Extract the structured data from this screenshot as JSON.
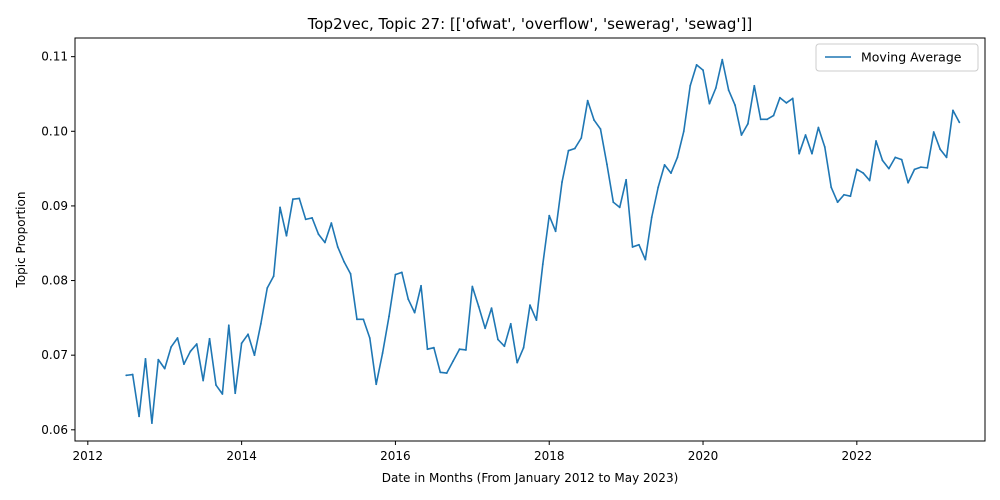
{
  "chart_data": {
    "type": "line",
    "title": "Top2vec, Topic 27: [['ofwat', 'overflow', 'sewerag', 'sewag']]",
    "xlabel": "Date in Months (From January 2012 to May 2023)",
    "ylabel": "Topic Proportion",
    "xlim": [
      "2011-11-01",
      "2023-09-01"
    ],
    "ylim": [
      0.0585,
      0.1125
    ],
    "x_ticks": [
      "2012",
      "2014",
      "2016",
      "2018",
      "2020",
      "2022"
    ],
    "y_ticks": [
      "0.06",
      "0.07",
      "0.08",
      "0.09",
      "0.10",
      "0.11"
    ],
    "grid": false,
    "legend_position": "top-right",
    "line_color": "#1f77b4",
    "series": [
      {
        "name": "Moving Average",
        "x": [
          "2012-07",
          "2012-08",
          "2012-09",
          "2012-10",
          "2012-11",
          "2012-12",
          "2013-01",
          "2013-02",
          "2013-03",
          "2013-04",
          "2013-05",
          "2013-06",
          "2013-07",
          "2013-08",
          "2013-09",
          "2013-10",
          "2013-11",
          "2013-12",
          "2014-01",
          "2014-02",
          "2014-03",
          "2014-04",
          "2014-05",
          "2014-06",
          "2014-07",
          "2014-08",
          "2014-09",
          "2014-10",
          "2014-11",
          "2014-12",
          "2015-01",
          "2015-02",
          "2015-03",
          "2015-04",
          "2015-05",
          "2015-06",
          "2015-07",
          "2015-08",
          "2015-09",
          "2015-10",
          "2015-11",
          "2015-12",
          "2016-01",
          "2016-02",
          "2016-03",
          "2016-04",
          "2016-05",
          "2016-06",
          "2016-07",
          "2016-08",
          "2016-09",
          "2016-10",
          "2016-11",
          "2016-12",
          "2017-01",
          "2017-02",
          "2017-03",
          "2017-04",
          "2017-05",
          "2017-06",
          "2017-07",
          "2017-08",
          "2017-09",
          "2017-10",
          "2017-11",
          "2017-12",
          "2018-01",
          "2018-02",
          "2018-03",
          "2018-04",
          "2018-05",
          "2018-06",
          "2018-07",
          "2018-08",
          "2018-09",
          "2018-10",
          "2018-11",
          "2018-12",
          "2019-01",
          "2019-02",
          "2019-03",
          "2019-04",
          "2019-05",
          "2019-06",
          "2019-07",
          "2019-08",
          "2019-09",
          "2019-10",
          "2019-11",
          "2019-12",
          "2020-01",
          "2020-02",
          "2020-03",
          "2020-04",
          "2020-05",
          "2020-06",
          "2020-07",
          "2020-08",
          "2020-09",
          "2020-10",
          "2020-11",
          "2020-12",
          "2021-01",
          "2021-02",
          "2021-03",
          "2021-04",
          "2021-05",
          "2021-06",
          "2021-07",
          "2021-08",
          "2021-09",
          "2021-10",
          "2021-11",
          "2021-12",
          "2022-01",
          "2022-02",
          "2022-03",
          "2022-04",
          "2022-05",
          "2022-06",
          "2022-07",
          "2022-08",
          "2022-09",
          "2022-10",
          "2022-11",
          "2022-12",
          "2023-01",
          "2023-02",
          "2023-03",
          "2023-04",
          "2023-05"
        ],
        "y": [
          0.0673,
          0.0674,
          0.0618,
          0.0695,
          0.0609,
          0.0694,
          0.0682,
          0.0711,
          0.0723,
          0.0688,
          0.0705,
          0.0715,
          0.0666,
          0.0722,
          0.066,
          0.0648,
          0.074,
          0.0649,
          0.0716,
          0.0728,
          0.07,
          0.0742,
          0.079,
          0.0806,
          0.0898,
          0.086,
          0.0909,
          0.091,
          0.0882,
          0.0884,
          0.0862,
          0.0851,
          0.0877,
          0.0845,
          0.0825,
          0.0809,
          0.0748,
          0.0748,
          0.0723,
          0.0661,
          0.0703,
          0.0752,
          0.0808,
          0.0811,
          0.0775,
          0.0757,
          0.0793,
          0.0708,
          0.071,
          0.0677,
          0.0676,
          0.0692,
          0.0708,
          0.0707,
          0.0792,
          0.0765,
          0.0736,
          0.0763,
          0.0721,
          0.0712,
          0.0742,
          0.069,
          0.071,
          0.0767,
          0.0747,
          0.0822,
          0.0887,
          0.0866,
          0.0932,
          0.0974,
          0.0977,
          0.0991,
          0.1041,
          0.1015,
          0.1003,
          0.0956,
          0.0905,
          0.0898,
          0.0935,
          0.0845,
          0.0848,
          0.0828,
          0.0885,
          0.0925,
          0.0955,
          0.0944,
          0.0965,
          0.1,
          0.1061,
          0.1089,
          0.1082,
          0.1037,
          0.1058,
          0.1096,
          0.1055,
          0.1035,
          0.0995,
          0.101,
          0.1061,
          0.1016,
          0.1016,
          0.1021,
          0.1045,
          0.1038,
          0.1044,
          0.097,
          0.0995,
          0.097,
          0.1005,
          0.0979,
          0.0925,
          0.0905,
          0.0915,
          0.0913,
          0.0949,
          0.0944,
          0.0934,
          0.0987,
          0.0961,
          0.095,
          0.0965,
          0.0962,
          0.0931,
          0.0949,
          0.0952,
          0.0951,
          0.0999,
          0.0976,
          0.0965,
          0.1028,
          0.1012
        ]
      }
    ]
  }
}
